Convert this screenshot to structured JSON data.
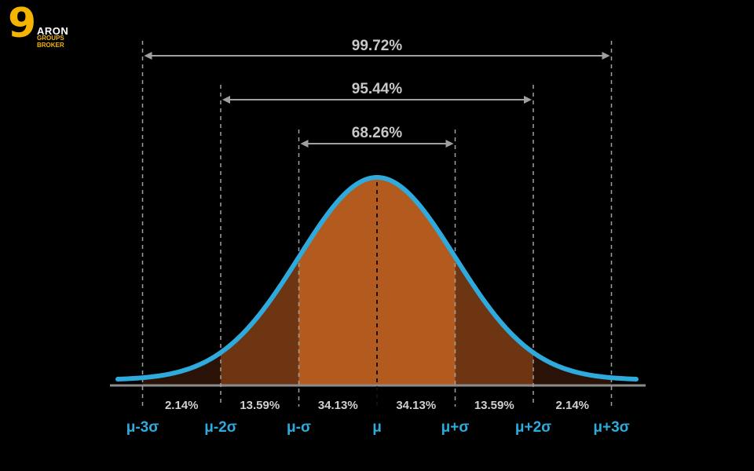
{
  "brand": {
    "line1": "ARON",
    "line2": "GROUPS",
    "line3": "BROKER",
    "mark": "9"
  },
  "spans": [
    {
      "label": "99.72%",
      "from": "μ-3σ",
      "to": "μ+3σ"
    },
    {
      "label": "95.44%",
      "from": "μ-2σ",
      "to": "μ+2σ"
    },
    {
      "label": "68.26%",
      "from": "μ-σ",
      "to": "μ+σ"
    }
  ],
  "sigma_labels": [
    "μ-3σ",
    "μ-2σ",
    "μ-σ",
    "μ",
    "μ+σ",
    "μ+2σ",
    "μ+3σ"
  ],
  "segment_percents": [
    "2.14%",
    "13.59%",
    "34.13%",
    "34.13%",
    "13.59%",
    "2.14%"
  ],
  "colors": {
    "background": "#000000",
    "curve": "#2eaadc",
    "inner_fill": "#b35a1f",
    "outer_fill": "#6e3512",
    "tail_fill": "#2a1306",
    "axis": "#8c8c8c",
    "guide": "#a0a0a0",
    "span_text": "#c8c8c8",
    "percent_text": "#d0d0d0",
    "label_text": "#2eaadc",
    "brand_accent": "#f4b400"
  }
}
